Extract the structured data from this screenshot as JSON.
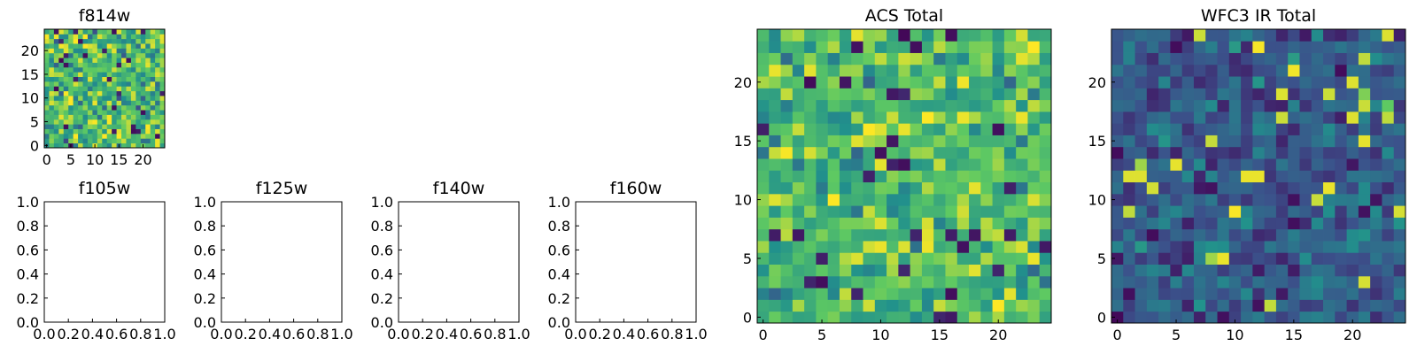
{
  "colors": {
    "background": "#ffffff",
    "axis": "#000000",
    "colormap": "viridis"
  },
  "chart_data": [
    {
      "id": "f814w",
      "type": "heatmap",
      "title": "f814w",
      "grid_size": 25,
      "xlim": [
        -0.5,
        24.5
      ],
      "ylim": [
        -0.5,
        24.5
      ],
      "xticks": [
        0,
        5,
        10,
        15,
        20
      ],
      "yticks": [
        0,
        5,
        10,
        15,
        20
      ],
      "distribution": {
        "mean": 0.66,
        "spread": 0.2,
        "seed": 11
      }
    },
    {
      "id": "f105w",
      "type": "empty",
      "title": "f105w",
      "xlim": [
        0,
        1
      ],
      "ylim": [
        0,
        1
      ],
      "xtick_labels": [
        "0.0",
        "0.2",
        "0.4",
        "0.6",
        "0.8",
        "1.0"
      ],
      "ytick_labels": [
        "0.0",
        "0.2",
        "0.4",
        "0.6",
        "0.8",
        "1.0"
      ]
    },
    {
      "id": "f125w",
      "type": "empty",
      "title": "f125w",
      "xlim": [
        0,
        1
      ],
      "ylim": [
        0,
        1
      ],
      "xtick_labels": [
        "0.0",
        "0.2",
        "0.4",
        "0.6",
        "0.8",
        "1.0"
      ],
      "ytick_labels": [
        "0.0",
        "0.2",
        "0.4",
        "0.6",
        "0.8",
        "1.0"
      ]
    },
    {
      "id": "f140w",
      "type": "empty",
      "title": "f140w",
      "xlim": [
        0,
        1
      ],
      "ylim": [
        0,
        1
      ],
      "xtick_labels": [
        "0.0",
        "0.2",
        "0.4",
        "0.6",
        "0.8",
        "1.0"
      ],
      "ytick_labels": [
        "0.0",
        "0.2",
        "0.4",
        "0.6",
        "0.8",
        "1.0"
      ]
    },
    {
      "id": "f160w",
      "type": "empty",
      "title": "f160w",
      "xlim": [
        0,
        1
      ],
      "ylim": [
        0,
        1
      ],
      "xtick_labels": [
        "0.0",
        "0.2",
        "0.4",
        "0.6",
        "0.8",
        "1.0"
      ],
      "ytick_labels": [
        "0.0",
        "0.2",
        "0.4",
        "0.6",
        "0.8",
        "1.0"
      ]
    },
    {
      "id": "acs-total",
      "type": "heatmap",
      "title": "ACS Total",
      "grid_size": 25,
      "xlim": [
        -0.5,
        24.5
      ],
      "ylim": [
        -0.5,
        24.5
      ],
      "xticks": [
        0,
        5,
        10,
        15,
        20
      ],
      "yticks": [
        0,
        5,
        10,
        15,
        20
      ],
      "distribution": {
        "mean": 0.68,
        "spread": 0.17,
        "seed": 23
      }
    },
    {
      "id": "wfc3-ir-total",
      "type": "heatmap",
      "title": "WFC3 IR Total",
      "grid_size": 25,
      "xlim": [
        -0.5,
        24.5
      ],
      "ylim": [
        -0.5,
        24.5
      ],
      "xticks": [
        0,
        5,
        10,
        15,
        20
      ],
      "yticks": [
        0,
        5,
        10,
        15,
        20
      ],
      "distribution": {
        "mean": 0.3,
        "spread": 0.12,
        "seed": 37
      },
      "highlight_cells": [
        {
          "col": 1,
          "row": 12,
          "value": 0.95
        },
        {
          "col": 2,
          "row": 12,
          "value": 0.95
        },
        {
          "col": 2,
          "row": 13,
          "value": 0.85
        },
        {
          "col": 11,
          "row": 12,
          "value": 0.97
        },
        {
          "col": 12,
          "row": 12,
          "value": 0.97
        },
        {
          "col": 18,
          "row": 11,
          "value": 0.97
        },
        {
          "col": 8,
          "row": 5,
          "value": 0.85
        },
        {
          "col": 9,
          "row": 5,
          "value": 0.97
        },
        {
          "col": 14,
          "row": 17,
          "value": 0.92
        },
        {
          "col": 20,
          "row": 20,
          "value": 0.95
        },
        {
          "col": 21,
          "row": 19,
          "value": 0.8
        },
        {
          "col": 23,
          "row": 18,
          "value": 0.75
        },
        {
          "col": 23,
          "row": 17,
          "value": 0.9
        },
        {
          "col": 20,
          "row": 17,
          "value": 0.95
        },
        {
          "col": 23,
          "row": 24,
          "value": 0.95
        }
      ]
    }
  ]
}
